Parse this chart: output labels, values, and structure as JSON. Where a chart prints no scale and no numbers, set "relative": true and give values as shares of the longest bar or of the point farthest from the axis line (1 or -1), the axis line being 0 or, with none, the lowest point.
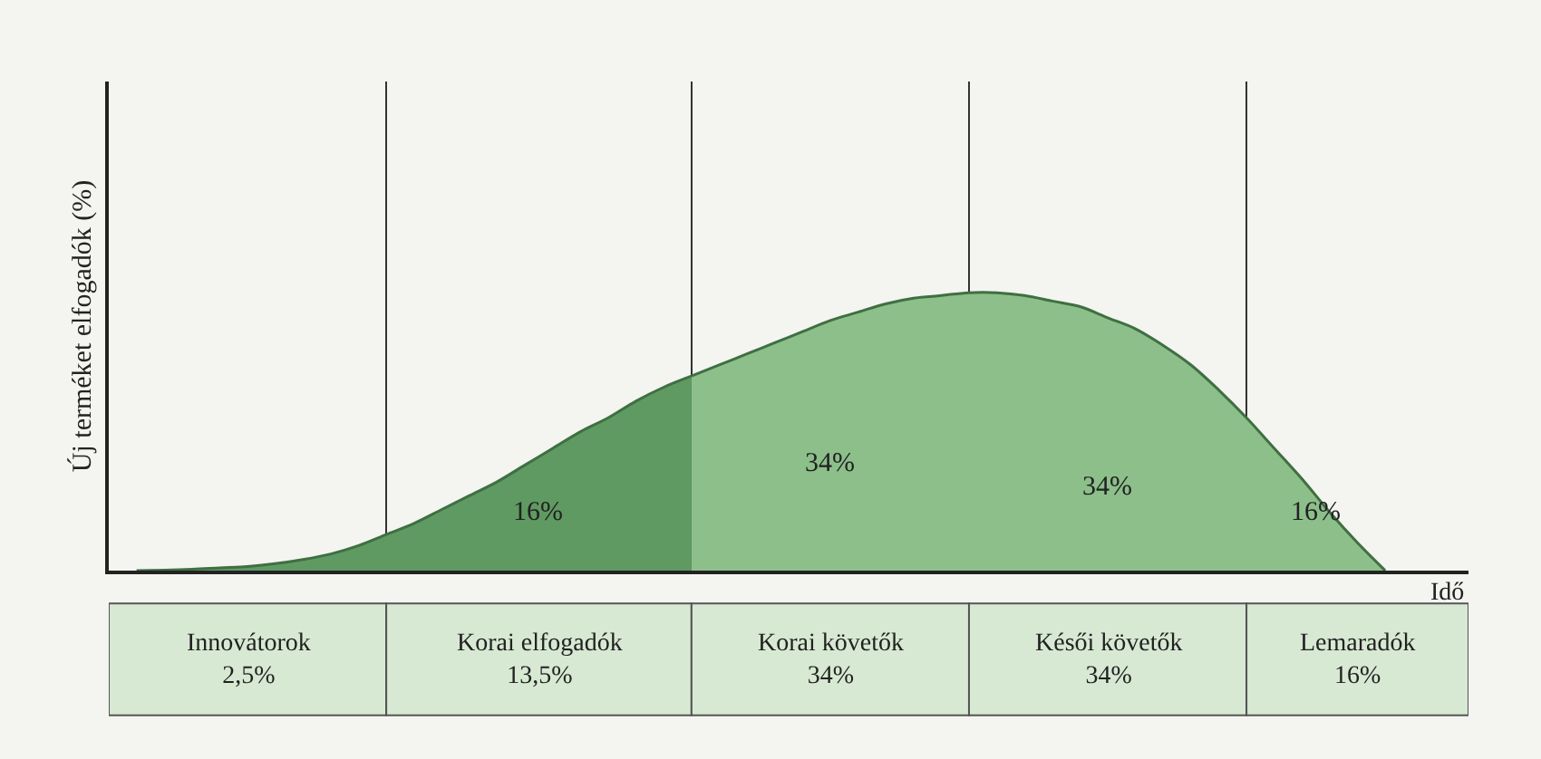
{
  "chart_data": {
    "type": "area",
    "relative": true,
    "xlabel": "Idő",
    "ylabel": "Új terméket elfogadók (%)",
    "categories": [
      null,
      null,
      null,
      null,
      null,
      null,
      null,
      null,
      null,
      null,
      null,
      null,
      null,
      null,
      null,
      null,
      null,
      null,
      null,
      null,
      null,
      null,
      null,
      null,
      null,
      null,
      null,
      null,
      null,
      null,
      null,
      null,
      null,
      null,
      null,
      null,
      null,
      null,
      null,
      null,
      null,
      null,
      null,
      null,
      null,
      null,
      null,
      null,
      null
    ],
    "series": [
      {
        "color": "#5f9a62",
        "values": [
          0,
          0.002,
          0.005,
          0.01,
          0.015,
          0.025,
          0.04,
          0.06,
          0.09,
          0.13,
          0.17,
          0.22,
          0.27,
          0.32,
          0.38,
          0.44,
          0.5,
          0.55,
          0.61,
          0.66,
          0.7,
          null,
          null,
          null,
          null,
          null,
          null,
          null,
          null,
          null,
          null,
          null,
          null,
          null,
          null,
          null,
          null,
          null,
          null,
          null,
          null,
          null,
          null,
          null,
          null,
          null,
          null,
          null,
          null
        ]
      },
      {
        "color": "#8dbf8a",
        "values": [
          null,
          null,
          null,
          null,
          null,
          null,
          null,
          null,
          null,
          null,
          null,
          null,
          null,
          null,
          null,
          null,
          null,
          null,
          null,
          null,
          0.7,
          0.74,
          0.78,
          0.82,
          0.86,
          0.9,
          0.93,
          0.96,
          0.98,
          0.99,
          1.0,
          1.0,
          0.99,
          0.97,
          0.95,
          0.91,
          0.87,
          0.81,
          0.74,
          0.65,
          0.55,
          0.44,
          0.33,
          0.21,
          0.1,
          0,
          null,
          null,
          null
        ]
      }
    ],
    "annotations": [
      "16%",
      "34%",
      "34%",
      "16%",
      "Innovátorok\n2,5%",
      "Korai elfogadók\n13,5%",
      "Korai követők\n34%",
      "Késői követők\n34%",
      "Lemaradók\n16%"
    ],
    "legend": false,
    "grid": "x"
  }
}
